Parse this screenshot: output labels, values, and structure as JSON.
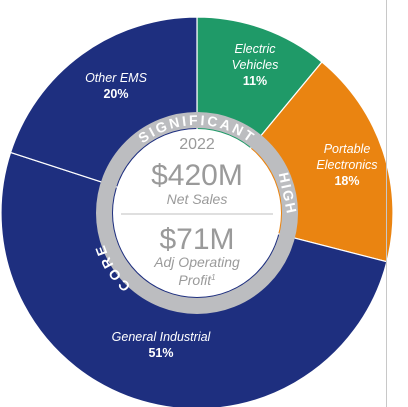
{
  "chart_data": {
    "type": "pie",
    "slices": [
      {
        "label_lines": [
          "Electric",
          "Vehicles"
        ],
        "pct_label": "11%",
        "value": 11,
        "color": "#1f9a68"
      },
      {
        "label_lines": [
          "Portable",
          "Electronics"
        ],
        "pct_label": "18%",
        "value": 18,
        "color": "#ea8411"
      },
      {
        "label_lines": [
          "General Industrial"
        ],
        "pct_label": "51%",
        "value": 51,
        "color": "#1e2f7f"
      },
      {
        "label_lines": [
          "Other EMS"
        ],
        "pct_label": "20%",
        "value": 20,
        "color": "#1e2f7f"
      }
    ],
    "ring_labels": {
      "significant": "SIGNIFICANT",
      "high": "HIGH",
      "core": "CORE"
    },
    "center": {
      "year": "2022",
      "sales_value": "$420M",
      "sales_label": "Net Sales",
      "profit_value": "$71M",
      "profit_label_line1": "Adj Operating",
      "profit_label_line2": "Profit",
      "profit_footnote": "1"
    },
    "colors": {
      "segment_divider": "#ffffff",
      "ring": "#bcbdc0",
      "center_text": "#9a9a9a",
      "label_text": "#ffffff"
    }
  }
}
